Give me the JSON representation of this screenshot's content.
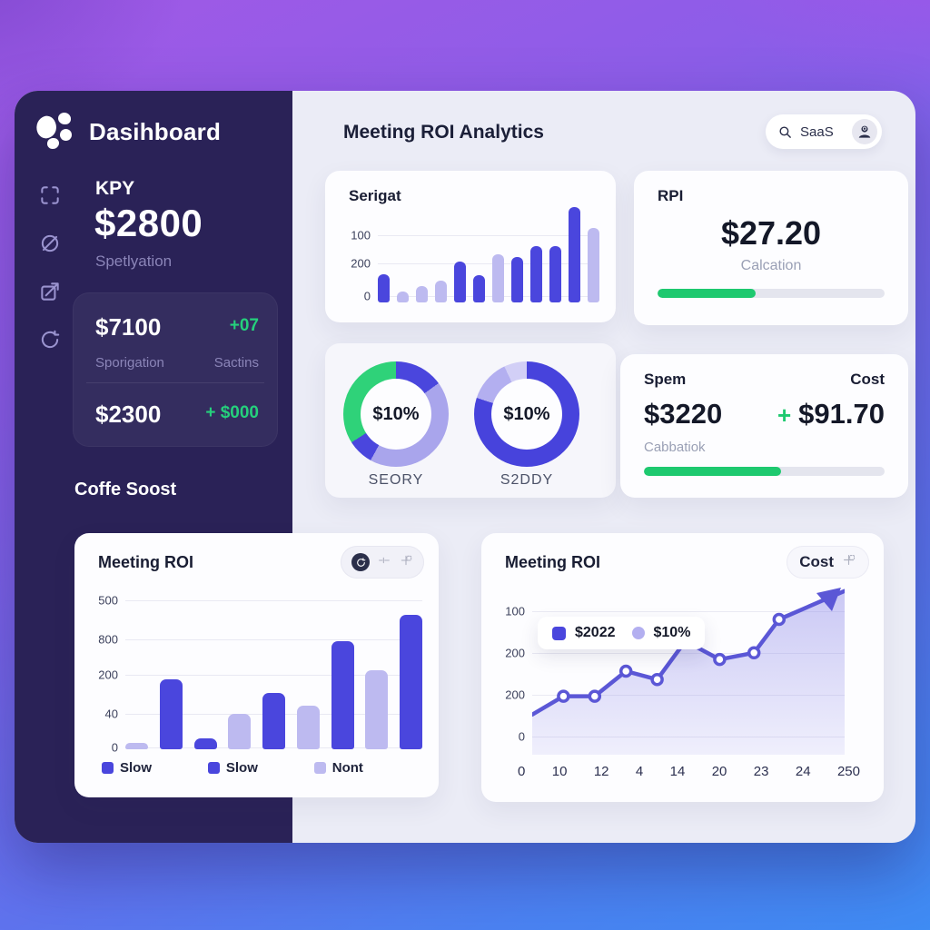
{
  "colors": {
    "dark": "#4a46dd",
    "light": "#bdbaf0",
    "green": "#1ec96f",
    "line": "#5b57d6",
    "sidebar_bg": "#2a2257",
    "panel_bg": "#ebecf6",
    "card_bg": "#fdfdff"
  },
  "icons": {
    "brand": "blob-logo",
    "rail": [
      "scan-icon",
      "visibility-off-icon",
      "export-icon",
      "refresh-icon"
    ],
    "search": "magnifier-icon",
    "avatar": "person-icon",
    "bar_card_tools": [
      "sync-icon",
      "sliders-icon",
      "grid-plus-icon"
    ],
    "line_card_tool": "grid-plus-icon"
  },
  "sidebar": {
    "brand": "Dasihboard",
    "kpi": {
      "label": "KPY",
      "value": "$2800",
      "caption": "Spetlyation"
    },
    "stat_card": {
      "row1": {
        "value": "$7100",
        "delta": "+07",
        "label": "Sporigation",
        "delta_label": "Sactins"
      },
      "row2": {
        "value": "$2300",
        "delta": "+ $000"
      }
    },
    "section_title": "Coffe Soost"
  },
  "header": {
    "title": "Meeting ROI Analytics",
    "search_label": "SaaS"
  },
  "cards": {
    "serigat": {
      "title": "Serigat"
    },
    "rpi": {
      "title": "RPI",
      "value": "$27.20",
      "caption": "Calcation",
      "progress_pct": 43
    },
    "donut_left": {
      "center": "$10%",
      "caption": "SEORY"
    },
    "donut_right": {
      "center": "$10%",
      "caption": "S2DDY"
    },
    "spem": {
      "title_left": "Spem",
      "title_right": "Cost",
      "value": "$3220",
      "plus": "+",
      "delta": "$91.70",
      "caption": "Cabbatiok",
      "progress_pct": 57
    },
    "meeting_bar": {
      "title": "Meeting ROI"
    },
    "meeting_line": {
      "title": "Meeting ROI",
      "button": "Cost"
    }
  },
  "chart_data": [
    {
      "id": "serigat",
      "type": "bar",
      "title": "Serigat",
      "y_ticks": [
        {
          "label": "100",
          "pos": 33
        },
        {
          "label": "200",
          "pos": 61
        },
        {
          "label": "0",
          "pos": 94
        }
      ],
      "values": [
        28,
        11,
        16,
        22,
        41,
        27,
        48,
        45,
        56,
        56,
        95,
        74
      ],
      "bar_colors": [
        "dark",
        "light",
        "light",
        "light",
        "dark",
        "dark",
        "light",
        "dark",
        "dark",
        "dark",
        "dark",
        "light"
      ],
      "grid": true,
      "legend": "none"
    },
    {
      "id": "donut-left",
      "type": "pie",
      "center_label": "$10%",
      "caption": "SEORY",
      "segments": [
        {
          "color": "#4a46dd",
          "pct": 15
        },
        {
          "color": "#a9a5ec",
          "pct": 43
        },
        {
          "color": "#4a46dd",
          "pct": 8
        },
        {
          "color": "#2fd279",
          "pct": 34
        }
      ]
    },
    {
      "id": "donut-right",
      "type": "pie",
      "center_label": "$10%",
      "caption": "S2DDY",
      "segments": [
        {
          "color": "#4743dc",
          "pct": 80
        },
        {
          "color": "#b3aff0",
          "pct": 13
        },
        {
          "color": "#d2cff6",
          "pct": 7
        }
      ]
    },
    {
      "id": "meeting-bar",
      "type": "bar",
      "title": "Meeting ROI",
      "y_ticks": [
        {
          "label": "500",
          "pos": 8
        },
        {
          "label": "800",
          "pos": 32
        },
        {
          "label": "200",
          "pos": 54
        },
        {
          "label": "40",
          "pos": 78
        },
        {
          "label": "0",
          "pos": 99
        }
      ],
      "values": [
        4,
        43,
        7,
        22,
        35,
        27,
        67,
        49,
        83
      ],
      "bar_colors": [
        "light",
        "dark",
        "dark",
        "light",
        "dark",
        "light",
        "dark",
        "light",
        "dark"
      ],
      "legend": [
        {
          "label": "Slow",
          "color": "dark"
        },
        {
          "label": "Slow",
          "color": "dark"
        },
        {
          "label": "Nont",
          "color": "light"
        }
      ],
      "grid": true
    },
    {
      "id": "meeting-line",
      "type": "line",
      "title": "Meeting ROI",
      "y_ticks": [
        {
          "label": "100",
          "pos": 14
        },
        {
          "label": "200",
          "pos": 39
        },
        {
          "label": "200",
          "pos": 64
        },
        {
          "label": "0",
          "pos": 89
        }
      ],
      "x_ticks": [
        "0",
        "10",
        "12",
        "4",
        "14",
        "20",
        "23",
        "24",
        "250"
      ],
      "points_pct": [
        [
          0,
          76
        ],
        [
          10,
          65
        ],
        [
          20,
          65
        ],
        [
          30,
          50
        ],
        [
          40,
          55
        ],
        [
          49,
          32
        ],
        [
          60,
          43
        ],
        [
          71,
          39
        ],
        [
          79,
          19
        ],
        [
          100,
          2
        ]
      ],
      "marker_indices": [
        1,
        2,
        3,
        4,
        5,
        6,
        7,
        8
      ],
      "legend": [
        {
          "label": "$2022",
          "color": "dark"
        },
        {
          "label": "$10%",
          "color": "light"
        }
      ],
      "area_fill": true,
      "arrow_end": true,
      "grid": true
    }
  ]
}
